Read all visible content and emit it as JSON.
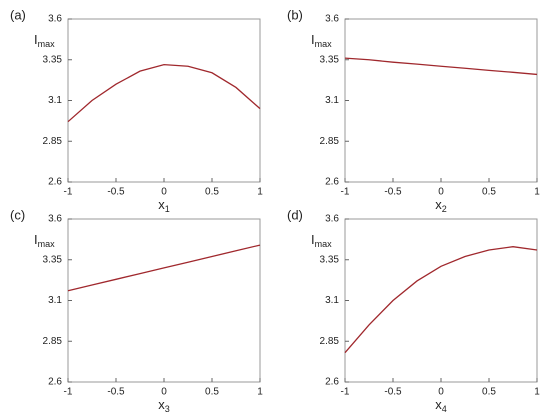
{
  "chart_data": [
    {
      "type": "line",
      "panel": "(a)",
      "ylabel": {
        "main": "I",
        "sub": "max"
      },
      "xlabel": {
        "main": "x",
        "sub": "1"
      },
      "x": [
        -1,
        -0.75,
        -0.5,
        -0.25,
        0,
        0.25,
        0.5,
        0.75,
        1
      ],
      "series": [
        {
          "color": "#a0282d",
          "values": [
            2.97,
            3.1,
            3.2,
            3.28,
            3.32,
            3.31,
            3.27,
            3.18,
            3.05
          ]
        }
      ],
      "xlim": [
        -1,
        1
      ],
      "ylim": [
        2.6,
        3.6
      ],
      "xticks": [
        -1,
        -0.5,
        0,
        0.5,
        1
      ],
      "yticks": [
        2.6,
        2.85,
        3.1,
        3.35,
        3.6
      ]
    },
    {
      "type": "line",
      "panel": "(b)",
      "ylabel": {
        "main": "I",
        "sub": "max"
      },
      "xlabel": {
        "main": "x",
        "sub": "2"
      },
      "x": [
        -1,
        -0.75,
        -0.5,
        -0.25,
        0,
        0.25,
        0.5,
        0.75,
        1
      ],
      "series": [
        {
          "color": "#a0282d",
          "values": [
            3.36,
            3.35,
            3.335,
            3.323,
            3.31,
            3.298,
            3.285,
            3.273,
            3.26
          ]
        }
      ],
      "xlim": [
        -1,
        1
      ],
      "ylim": [
        2.6,
        3.6
      ],
      "xticks": [
        -1,
        -0.5,
        0,
        0.5,
        1
      ],
      "yticks": [
        2.6,
        2.85,
        3.1,
        3.35,
        3.6
      ]
    },
    {
      "type": "line",
      "panel": "(c)",
      "ylabel": {
        "main": "I",
        "sub": "max"
      },
      "xlabel": {
        "main": "x",
        "sub": "3"
      },
      "x": [
        -1,
        -0.75,
        -0.5,
        -0.25,
        0,
        0.25,
        0.5,
        0.75,
        1
      ],
      "series": [
        {
          "color": "#a0282d",
          "values": [
            3.16,
            3.195,
            3.23,
            3.265,
            3.3,
            3.335,
            3.37,
            3.405,
            3.44
          ]
        }
      ],
      "xlim": [
        -1,
        1
      ],
      "ylim": [
        2.6,
        3.6
      ],
      "xticks": [
        -1,
        -0.5,
        0,
        0.5,
        1
      ],
      "yticks": [
        2.6,
        2.85,
        3.1,
        3.35,
        3.6
      ]
    },
    {
      "type": "line",
      "panel": "(d)",
      "ylabel": {
        "main": "I",
        "sub": "max"
      },
      "xlabel": {
        "main": "x",
        "sub": "4"
      },
      "x": [
        -1,
        -0.75,
        -0.5,
        -0.25,
        0,
        0.25,
        0.5,
        0.75,
        1
      ],
      "series": [
        {
          "color": "#a0282d",
          "values": [
            2.78,
            2.95,
            3.1,
            3.22,
            3.31,
            3.37,
            3.41,
            3.43,
            3.41
          ]
        }
      ],
      "xlim": [
        -1,
        1
      ],
      "ylim": [
        2.6,
        3.6
      ],
      "xticks": [
        -1,
        -0.5,
        0,
        0.5,
        1
      ],
      "yticks": [
        2.6,
        2.85,
        3.1,
        3.35,
        3.6
      ]
    }
  ]
}
